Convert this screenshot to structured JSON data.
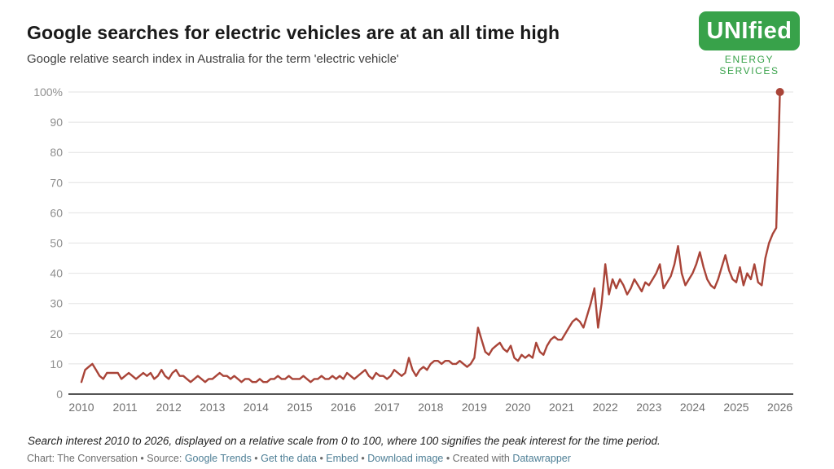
{
  "logo": {
    "wordmark": "UNIfied",
    "tagline": "ENERGY SERVICES",
    "green": "#38a24a"
  },
  "footer": {
    "note": "Search interest 2010 to 2026, displayed on a relative scale from 0 to 100, where 100 signifies the peak interest for the time period.",
    "credits": [
      {
        "name": "credit-text",
        "text": "Chart: The Conversation • Source: ",
        "link": false
      },
      {
        "name": "google-trends-link",
        "text": "Google Trends",
        "link": true
      },
      {
        "name": "credit-separator",
        "text": " • ",
        "link": false
      },
      {
        "name": "get-the-data-link",
        "text": "Get the data",
        "link": true
      },
      {
        "name": "credit-separator",
        "text": " • ",
        "link": false
      },
      {
        "name": "embed-link",
        "text": "Embed",
        "link": true
      },
      {
        "name": "credit-separator",
        "text": "  • ",
        "link": false
      },
      {
        "name": "download-image-link",
        "text": "Download image",
        "link": true
      },
      {
        "name": "credit-separator",
        "text": " • ",
        "link": false
      },
      {
        "name": "credit-text",
        "text": "Created with ",
        "link": false
      },
      {
        "name": "datawrapper-link",
        "text": "Datawrapper",
        "link": true
      }
    ]
  },
  "chart_data": {
    "type": "line",
    "title": "Google searches for electric vehicles are at an all time high",
    "subtitle": "Google relative search index in Australia for the term 'electric vehicle'",
    "xlabel": "",
    "ylabel": "",
    "x_start_year": 2010,
    "frequency": "monthly",
    "ylim": [
      0,
      100
    ],
    "y_ticks": [
      "100%",
      "90",
      "80",
      "70",
      "60",
      "50",
      "40",
      "30",
      "20",
      "10",
      "0"
    ],
    "y_tick_values": [
      100,
      90,
      80,
      70,
      60,
      50,
      40,
      30,
      20,
      10,
      0
    ],
    "x_ticks": [
      "2010",
      "2011",
      "2012",
      "2013",
      "2014",
      "2015",
      "2016",
      "2017",
      "2018",
      "2019",
      "2020",
      "2021",
      "2022",
      "2023",
      "2024",
      "2025",
      "2026"
    ],
    "grid": true,
    "legend": "none",
    "line_color": "#a94438",
    "grid_color": "#e2e2e2",
    "baseline_color": "#555555",
    "y_label_color": "#8f8f8f",
    "x_label_color": "#6f6f6f",
    "end_dot": true,
    "series": [
      {
        "name": "Relative search index: 'electric vehicle' (Australia)",
        "values": [
          4,
          8,
          9,
          10,
          8,
          6,
          5,
          7,
          7,
          7,
          7,
          5,
          6,
          7,
          6,
          5,
          6,
          7,
          6,
          7,
          5,
          6,
          8,
          6,
          5,
          7,
          8,
          6,
          6,
          5,
          4,
          5,
          6,
          5,
          4,
          5,
          5,
          6,
          7,
          6,
          6,
          5,
          6,
          5,
          4,
          5,
          5,
          4,
          4,
          5,
          4,
          4,
          5,
          5,
          6,
          5,
          5,
          6,
          5,
          5,
          5,
          6,
          5,
          4,
          5,
          5,
          6,
          5,
          5,
          6,
          5,
          6,
          5,
          7,
          6,
          5,
          6,
          7,
          8,
          6,
          5,
          7,
          6,
          6,
          5,
          6,
          8,
          7,
          6,
          7,
          12,
          8,
          6,
          8,
          9,
          8,
          10,
          11,
          11,
          10,
          11,
          11,
          10,
          10,
          11,
          10,
          9,
          10,
          12,
          22,
          18,
          14,
          13,
          15,
          16,
          17,
          15,
          14,
          16,
          12,
          11,
          13,
          12,
          13,
          12,
          17,
          14,
          13,
          16,
          18,
          19,
          18,
          18,
          20,
          22,
          24,
          25,
          24,
          22,
          26,
          30,
          35,
          22,
          30,
          43,
          33,
          38,
          35,
          38,
          36,
          33,
          35,
          38,
          36,
          34,
          37,
          36,
          38,
          40,
          43,
          35,
          37,
          39,
          43,
          49,
          40,
          36,
          38,
          40,
          43,
          47,
          42,
          38,
          36,
          35,
          38,
          42,
          46,
          41,
          38,
          37,
          42,
          36,
          40,
          38,
          43,
          37,
          36,
          45,
          50,
          53,
          55,
          100
        ]
      }
    ]
  }
}
